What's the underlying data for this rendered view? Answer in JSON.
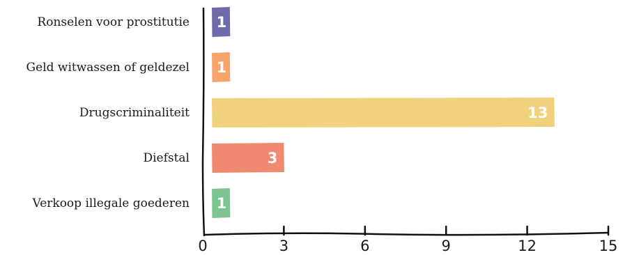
{
  "chart_data": {
    "type": "bar",
    "orientation": "horizontal",
    "categories": [
      "Ronselen voor prostitutie",
      "Geld witwassen of geldezel",
      "Drugscriminaliteit",
      "Diefstal",
      "Verkoop illegale goederen"
    ],
    "values": [
      1,
      1,
      13,
      3,
      1
    ],
    "data_labels": [
      "1",
      "1",
      "13",
      "3",
      "1"
    ],
    "colors": [
      "#6f6aaa",
      "#f6a46c",
      "#f0d27e",
      "#ef8a70",
      "#7cc590"
    ],
    "xlim": [
      0,
      15
    ],
    "xticks": [
      0,
      3,
      6,
      9,
      12,
      15
    ],
    "xtick_labels": [
      "0",
      "3",
      "6",
      "9",
      "12",
      "15"
    ],
    "grid": false,
    "title": "",
    "xlabel": "",
    "ylabel": ""
  }
}
